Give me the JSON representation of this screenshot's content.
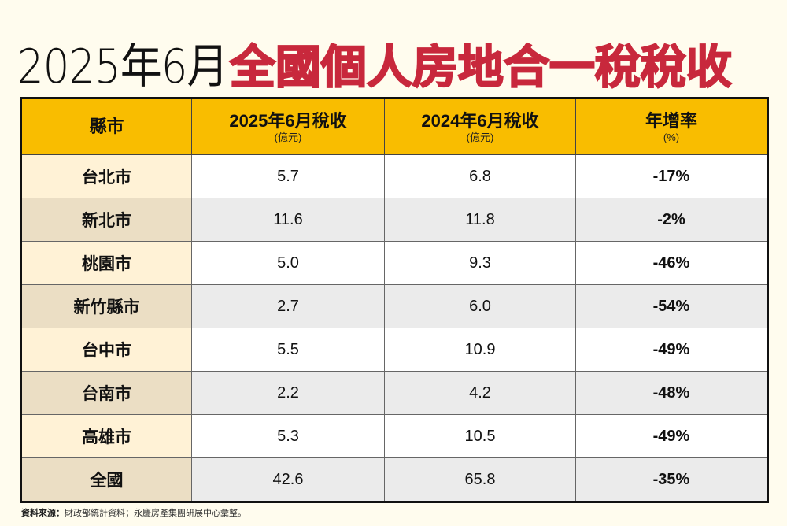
{
  "title": {
    "date": "2025年6月",
    "main": "全國個人房地合一稅稅收",
    "main_color": "#c8283c"
  },
  "table": {
    "header_color": "#f9bd00",
    "columns": [
      {
        "label": "縣市",
        "unit": ""
      },
      {
        "label": "2025年6月稅收",
        "unit": "(億元)"
      },
      {
        "label": "2024年6月稅收",
        "unit": "(億元)"
      },
      {
        "label": "年增率",
        "unit": "(%)"
      }
    ],
    "rows": [
      {
        "city": "台北市",
        "y2025": "5.7",
        "y2024": "6.8",
        "rate": "-17%"
      },
      {
        "city": "新北市",
        "y2025": "11.6",
        "y2024": "11.8",
        "rate": "-2%"
      },
      {
        "city": "桃園市",
        "y2025": "5.0",
        "y2024": "9.3",
        "rate": "-46%"
      },
      {
        "city": "新竹縣市",
        "y2025": "2.7",
        "y2024": "6.0",
        "rate": "-54%"
      },
      {
        "city": "台中市",
        "y2025": "5.5",
        "y2024": "10.9",
        "rate": "-49%"
      },
      {
        "city": "台南市",
        "y2025": "2.2",
        "y2024": "4.2",
        "rate": "-48%"
      },
      {
        "city": "高雄市",
        "y2025": "5.3",
        "y2024": "10.5",
        "rate": "-49%"
      },
      {
        "city": "全國",
        "y2025": "42.6",
        "y2024": "65.8",
        "rate": "-35%"
      }
    ]
  },
  "source": {
    "label": "資料來源：",
    "text": "財政部統計資料；永慶房產集團研展中心彙整。"
  }
}
